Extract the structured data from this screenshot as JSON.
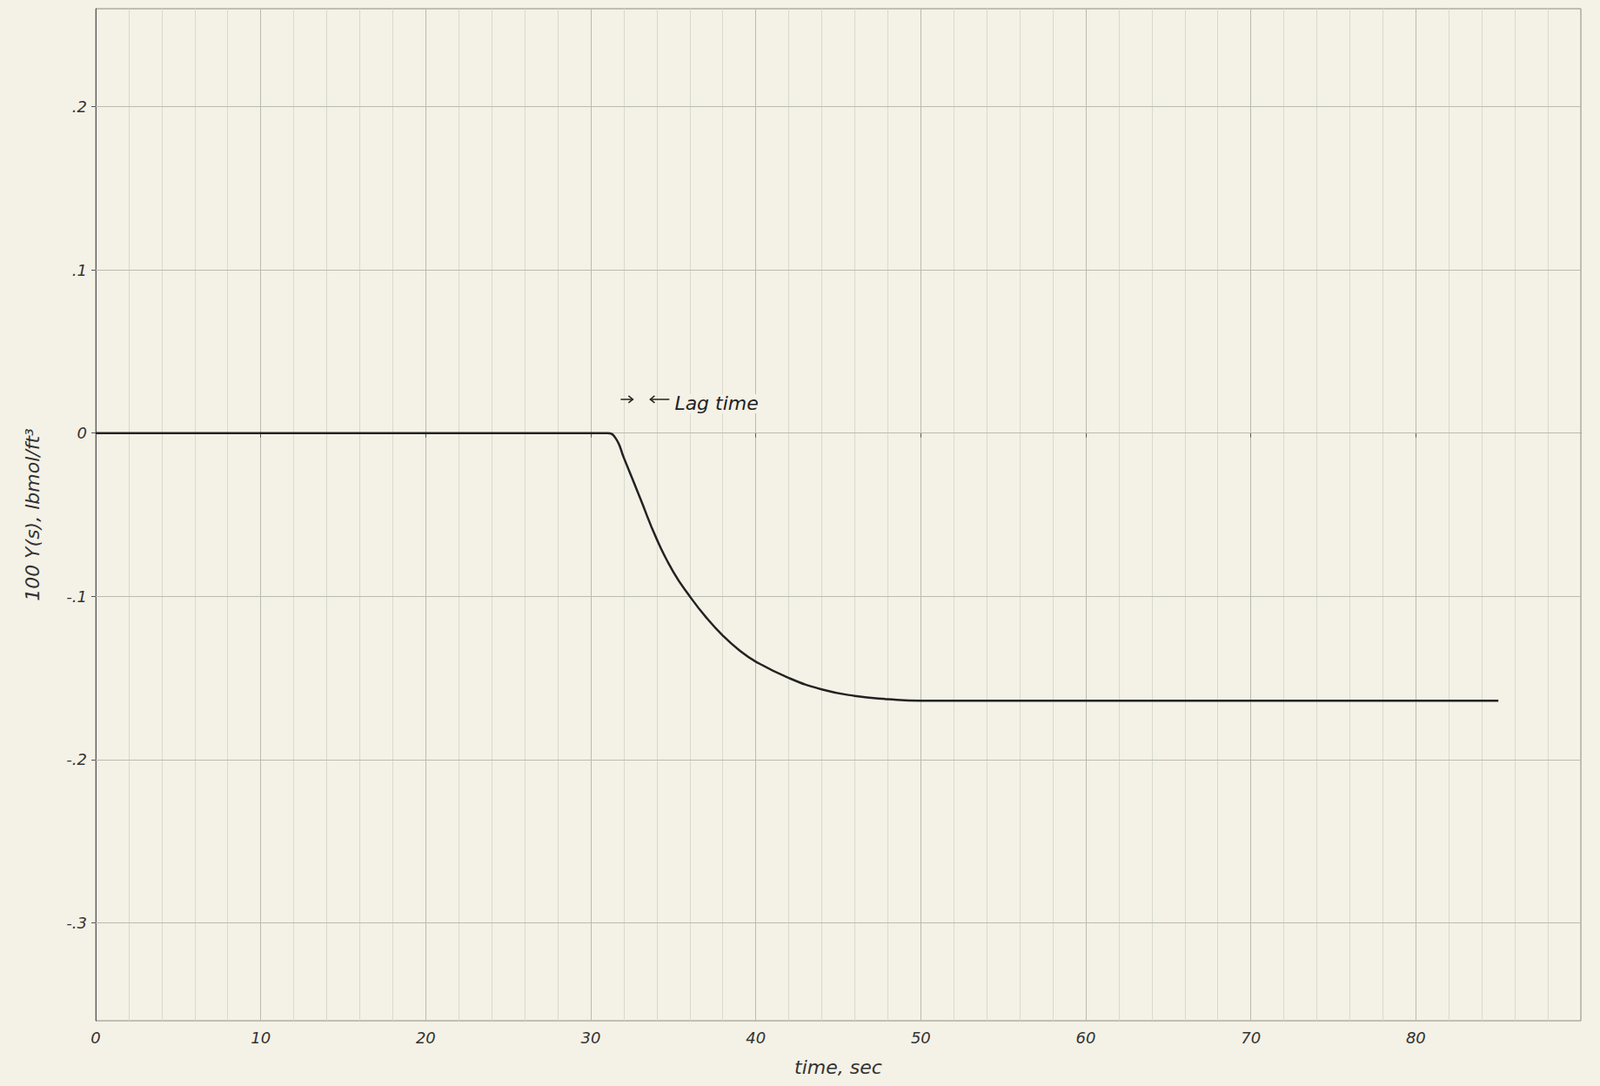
{
  "chart_data": {
    "type": "line",
    "x_label": "time, sec",
    "y_label": "100 Y(s), lbmol/ft³",
    "x": [
      0,
      10,
      20,
      30,
      31,
      31.5,
      32,
      33,
      34,
      35,
      36,
      37,
      38,
      39,
      40,
      42,
      44,
      46,
      48,
      50,
      60,
      70,
      80,
      85
    ],
    "values": [
      0,
      0,
      0,
      0,
      0,
      -0.003,
      -0.015,
      -0.04,
      -0.065,
      -0.085,
      -0.1,
      -0.113,
      -0.124,
      -0.133,
      -0.14,
      -0.15,
      -0.157,
      -0.161,
      -0.163,
      -0.164,
      -0.164,
      -0.164,
      -0.164,
      -0.164
    ],
    "color": "#222222",
    "xlim": [
      0,
      90
    ],
    "xticks": [
      0,
      10,
      20,
      30,
      40,
      50,
      60,
      70,
      80
    ],
    "ylim": [
      -0.36,
      0.26
    ],
    "yticks": [
      {
        "value": 0.2,
        "label": ".2"
      },
      {
        "value": 0.1,
        "label": ".1"
      },
      0,
      {
        "value": -0.1,
        "label": "-.1"
      },
      {
        "value": -0.2,
        "label": "-.2"
      },
      {
        "value": -0.3,
        "label": "-.3"
      }
    ],
    "grid": true,
    "annotations": [
      {
        "text": "Lag time",
        "x": 33.5,
        "y": 0.01
      }
    ]
  }
}
